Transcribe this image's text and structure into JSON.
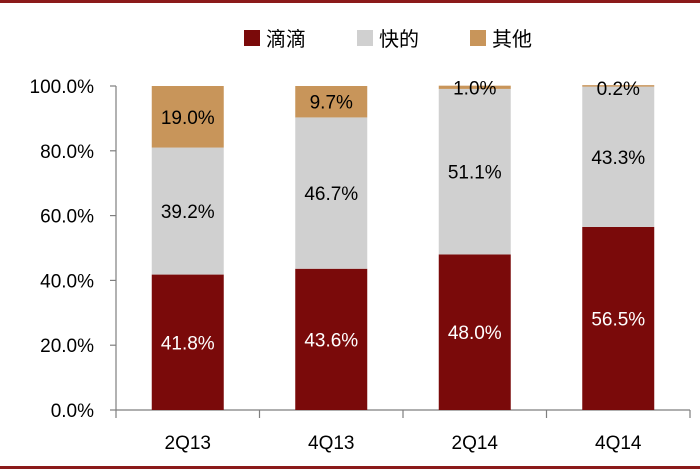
{
  "chart_data": {
    "type": "bar",
    "stacked": true,
    "categories": [
      "2Q13",
      "4Q13",
      "2Q14",
      "4Q14"
    ],
    "series": [
      {
        "name": "滴滴",
        "values": [
          41.8,
          43.6,
          48.0,
          56.5
        ],
        "labels": [
          "41.8%",
          "43.6%",
          "48.0%",
          "56.5%"
        ],
        "color": "#7a0a0a",
        "label_color": "#ffffff"
      },
      {
        "name": "快的",
        "values": [
          39.2,
          46.7,
          51.1,
          43.3
        ],
        "labels": [
          "39.2%",
          "46.7%",
          "51.1%",
          "43.3%"
        ],
        "color": "#d0d0d0",
        "label_color": "#000000"
      },
      {
        "name": "其他",
        "values": [
          19.0,
          9.7,
          1.0,
          0.2
        ],
        "labels": [
          "19.0%",
          "9.7%",
          "1.0%",
          "0.2%"
        ],
        "color": "#c8955a",
        "label_color": "#000000"
      }
    ],
    "ylim": [
      0,
      100
    ],
    "yticks": [
      0,
      20,
      40,
      60,
      80,
      100
    ],
    "ytick_labels": [
      "0.0%",
      "20.0%",
      "40.0%",
      "60.0%",
      "80.0%",
      "100.0%"
    ],
    "legend_position": "top-center",
    "grid": false,
    "title": "",
    "xlabel": "",
    "ylabel": ""
  }
}
